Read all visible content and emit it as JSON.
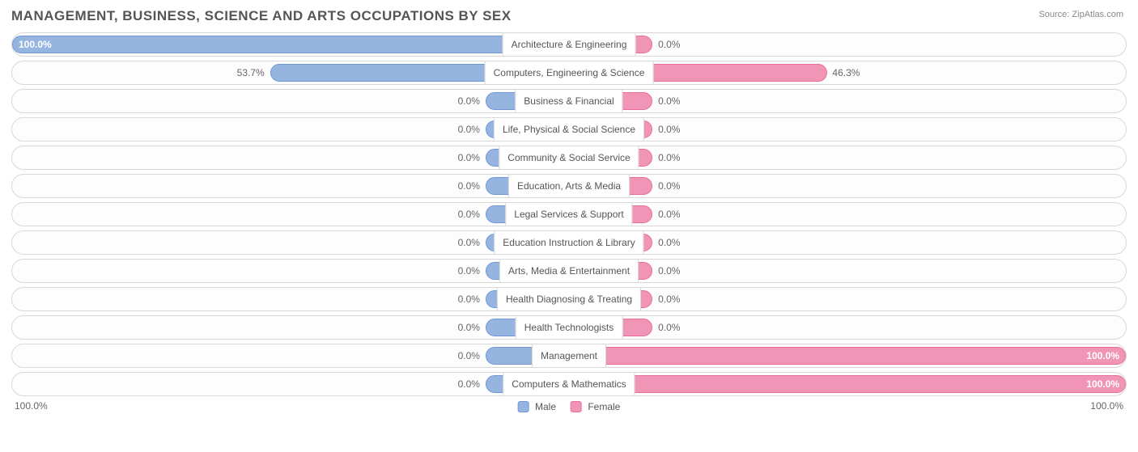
{
  "title": "MANAGEMENT, BUSINESS, SCIENCE AND ARTS OCCUPATIONS BY SEX",
  "source_label": "Source:",
  "source_name": "ZipAtlas.com",
  "axis": {
    "left": "100.0%",
    "right": "100.0%"
  },
  "legend": {
    "male": "Male",
    "female": "Female"
  },
  "style": {
    "male_fill": "#95b4e0",
    "male_border": "#6f98d4",
    "female_fill": "#f095b5",
    "female_border": "#e86f9b",
    "row_border": "#d8d8d8",
    "text_color": "#666666",
    "min_bar_pct": 15,
    "inside_threshold_pct": 85
  },
  "rows": [
    {
      "category": "Architecture & Engineering",
      "male": 100.0,
      "female": 0.0,
      "male_label": "100.0%",
      "female_label": "0.0%"
    },
    {
      "category": "Computers, Engineering & Science",
      "male": 53.7,
      "female": 46.3,
      "male_label": "53.7%",
      "female_label": "46.3%"
    },
    {
      "category": "Business & Financial",
      "male": 0.0,
      "female": 0.0,
      "male_label": "0.0%",
      "female_label": "0.0%"
    },
    {
      "category": "Life, Physical & Social Science",
      "male": 0.0,
      "female": 0.0,
      "male_label": "0.0%",
      "female_label": "0.0%"
    },
    {
      "category": "Community & Social Service",
      "male": 0.0,
      "female": 0.0,
      "male_label": "0.0%",
      "female_label": "0.0%"
    },
    {
      "category": "Education, Arts & Media",
      "male": 0.0,
      "female": 0.0,
      "male_label": "0.0%",
      "female_label": "0.0%"
    },
    {
      "category": "Legal Services & Support",
      "male": 0.0,
      "female": 0.0,
      "male_label": "0.0%",
      "female_label": "0.0%"
    },
    {
      "category": "Education Instruction & Library",
      "male": 0.0,
      "female": 0.0,
      "male_label": "0.0%",
      "female_label": "0.0%"
    },
    {
      "category": "Arts, Media & Entertainment",
      "male": 0.0,
      "female": 0.0,
      "male_label": "0.0%",
      "female_label": "0.0%"
    },
    {
      "category": "Health Diagnosing & Treating",
      "male": 0.0,
      "female": 0.0,
      "male_label": "0.0%",
      "female_label": "0.0%"
    },
    {
      "category": "Health Technologists",
      "male": 0.0,
      "female": 0.0,
      "male_label": "0.0%",
      "female_label": "0.0%"
    },
    {
      "category": "Management",
      "male": 0.0,
      "female": 100.0,
      "male_label": "0.0%",
      "female_label": "100.0%"
    },
    {
      "category": "Computers & Mathematics",
      "male": 0.0,
      "female": 100.0,
      "male_label": "0.0%",
      "female_label": "100.0%"
    }
  ]
}
